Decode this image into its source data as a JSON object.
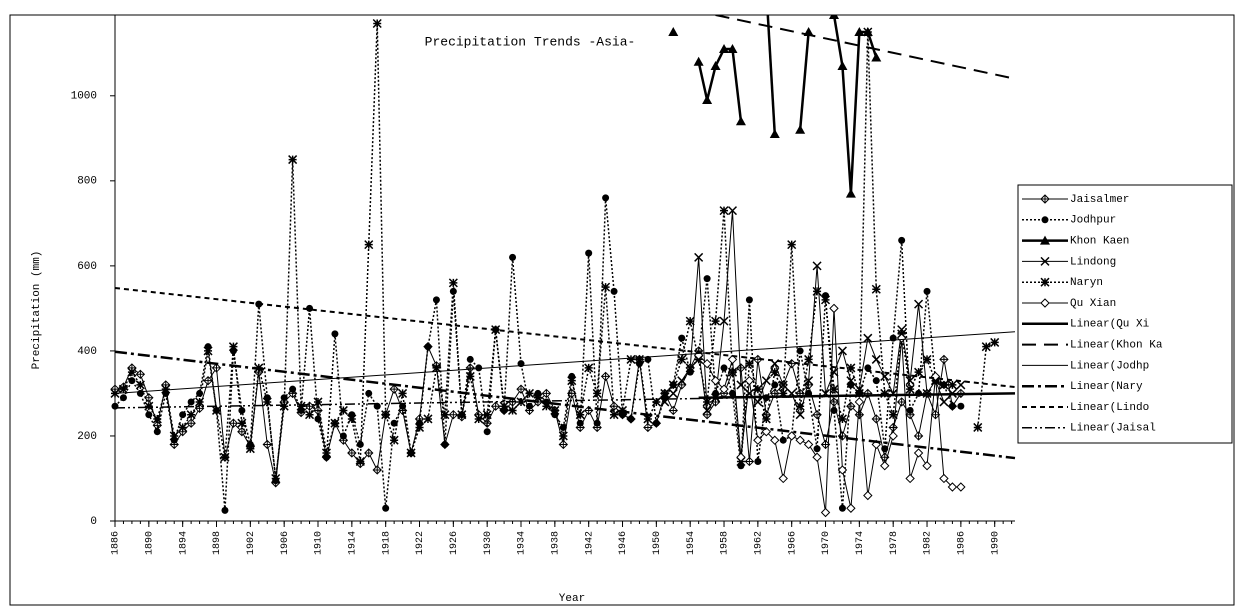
{
  "chart_data": {
    "type": "line",
    "title": "Precipitation Trends -Asia-",
    "x_label": "Year",
    "y_label": "Precipitation (mm)",
    "xlim": [
      1886,
      1992.4
    ],
    "ylim": [
      0,
      1190
    ],
    "xticks": [
      1886,
      1890,
      1894,
      1898,
      1902,
      1906,
      1910,
      1914,
      1918,
      1922,
      1926,
      1930,
      1934,
      1938,
      1942,
      1946,
      1950,
      1954,
      1958,
      1962,
      1966,
      1970,
      1974,
      1978,
      1982,
      1986,
      1990
    ],
    "yticks": [
      0,
      200,
      400,
      600,
      800,
      1000
    ],
    "x": [
      1886,
      1887,
      1888,
      1889,
      1890,
      1891,
      1892,
      1893,
      1894,
      1895,
      1896,
      1897,
      1898,
      1899,
      1900,
      1901,
      1902,
      1903,
      1904,
      1905,
      1906,
      1907,
      1908,
      1909,
      1910,
      1911,
      1912,
      1913,
      1914,
      1915,
      1916,
      1917,
      1918,
      1919,
      1920,
      1921,
      1922,
      1923,
      1924,
      1925,
      1926,
      1927,
      1928,
      1929,
      1930,
      1931,
      1932,
      1933,
      1934,
      1935,
      1936,
      1937,
      1938,
      1939,
      1940,
      1941,
      1942,
      1943,
      1944,
      1945,
      1946,
      1947,
      1948,
      1949,
      1950,
      1951,
      1952,
      1953,
      1954,
      1955,
      1956,
      1957,
      1958,
      1959,
      1960,
      1961,
      1962,
      1963,
      1964,
      1965,
      1966,
      1967,
      1968,
      1969,
      1970,
      1971,
      1972,
      1973,
      1974,
      1975,
      1976,
      1977,
      1978,
      1979,
      1980,
      1981,
      1982,
      1983,
      1984,
      1985,
      1986,
      1987,
      1988,
      1989,
      1990,
      1991,
      1992
    ],
    "legend": "right",
    "series": [
      {
        "name": "Jaisalmer",
        "color": "#000",
        "marker": "diamond-cross",
        "dash": "none",
        "width": 1,
        "values": [
          310,
          315,
          360,
          345,
          290,
          225,
          320,
          180,
          210,
          230,
          265,
          330,
          360,
          150,
          230,
          210,
          175,
          350,
          180,
          90,
          280,
          300,
          255,
          270,
          260,
          150,
          230,
          190,
          160,
          135,
          160,
          120,
          250,
          310,
          260,
          160,
          240,
          410,
          365,
          180,
          250,
          245,
          360,
          250,
          230,
          270,
          260,
          280,
          310,
          260,
          280,
          300,
          260,
          180,
          300,
          220,
          260,
          220,
          340,
          270,
          250,
          240,
          380,
          220,
          230,
          300,
          260,
          320,
          360,
          400,
          250,
          280,
          300,
          350,
          360,
          140,
          380,
          250,
          300,
          320,
          370,
          300,
          320,
          250,
          180,
          280,
          200,
          270,
          250,
          300,
          240,
          150,
          220,
          280,
          250,
          200,
          300,
          250,
          380,
          270,
          300,
          null,
          null,
          null,
          null,
          null,
          null
        ]
      },
      {
        "name": "Jodhpur",
        "color": "#000",
        "marker": "circle",
        "dash": "2,2",
        "width": 1.5,
        "values": [
          270,
          290,
          330,
          300,
          250,
          210,
          300,
          190,
          250,
          280,
          300,
          410,
          260,
          25,
          400,
          260,
          180,
          510,
          290,
          95,
          290,
          310,
          260,
          500,
          240,
          150,
          440,
          200,
          250,
          180,
          300,
          270,
          30,
          230,
          270,
          160,
          230,
          410,
          520,
          180,
          540,
          250,
          380,
          360,
          210,
          450,
          260,
          620,
          370,
          270,
          300,
          280,
          250,
          220,
          340,
          230,
          630,
          230,
          760,
          540,
          250,
          240,
          370,
          380,
          230,
          290,
          320,
          430,
          350,
          390,
          570,
          300,
          360,
          300,
          130,
          520,
          140,
          290,
          320,
          190,
          200,
          400,
          300,
          170,
          530,
          260,
          30,
          320,
          300,
          360,
          330,
          170,
          430,
          660,
          260,
          300,
          540,
          330,
          320,
          270,
          270,
          null,
          null,
          null,
          null,
          null,
          null
        ]
      },
      {
        "name": "Khon Kaen",
        "color": "#000",
        "marker": "triangle",
        "dash": "none",
        "width": 2.5,
        "values": [
          null,
          null,
          null,
          null,
          null,
          null,
          null,
          null,
          null,
          null,
          null,
          null,
          null,
          null,
          null,
          null,
          null,
          null,
          null,
          null,
          null,
          null,
          null,
          null,
          null,
          null,
          null,
          null,
          null,
          null,
          null,
          null,
          null,
          null,
          null,
          null,
          null,
          null,
          null,
          null,
          null,
          null,
          null,
          null,
          null,
          null,
          null,
          null,
          null,
          null,
          null,
          null,
          null,
          null,
          null,
          null,
          null,
          null,
          null,
          null,
          null,
          null,
          null,
          null,
          null,
          null,
          1150,
          null,
          null,
          1080,
          990,
          1070,
          1110,
          1110,
          940,
          null,
          null,
          1250,
          910,
          null,
          null,
          920,
          1150,
          null,
          null,
          1190,
          1070,
          770,
          1150,
          1150,
          1090,
          null,
          null,
          null,
          null,
          null,
          null,
          null,
          null,
          null,
          null,
          null,
          null,
          null,
          null,
          null,
          null
        ]
      },
      {
        "name": "Lindong",
        "color": "#000",
        "marker": "x",
        "dash": "none",
        "width": 1,
        "values": [
          null,
          null,
          null,
          null,
          null,
          null,
          null,
          null,
          null,
          null,
          null,
          null,
          null,
          null,
          null,
          null,
          null,
          null,
          null,
          null,
          null,
          null,
          null,
          null,
          null,
          null,
          null,
          null,
          null,
          null,
          null,
          null,
          null,
          null,
          null,
          null,
          null,
          null,
          null,
          null,
          null,
          null,
          null,
          null,
          null,
          null,
          null,
          null,
          null,
          null,
          null,
          null,
          null,
          null,
          null,
          null,
          null,
          null,
          null,
          null,
          null,
          null,
          null,
          null,
          null,
          280,
          300,
          330,
          360,
          620,
          260,
          290,
          470,
          730,
          320,
          300,
          280,
          330,
          370,
          320,
          300,
          250,
          330,
          600,
          300,
          350,
          400,
          330,
          310,
          430,
          380,
          340,
          300,
          450,
          330,
          510,
          300,
          330,
          280,
          300,
          320,
          null,
          null,
          null,
          null,
          null,
          null
        ]
      },
      {
        "name": "Naryn",
        "color": "#000",
        "marker": "asterisk",
        "dash": "2,2",
        "width": 1.5,
        "values": [
          300,
          310,
          350,
          320,
          270,
          240,
          310,
          200,
          220,
          250,
          280,
          400,
          260,
          150,
          410,
          230,
          170,
          360,
          280,
          100,
          270,
          850,
          270,
          250,
          280,
          160,
          230,
          260,
          240,
          140,
          650,
          1170,
          250,
          190,
          300,
          160,
          220,
          240,
          360,
          250,
          560,
          250,
          340,
          240,
          250,
          450,
          270,
          260,
          280,
          300,
          290,
          270,
          260,
          200,
          330,
          250,
          360,
          300,
          550,
          250,
          260,
          380,
          380,
          240,
          280,
          300,
          320,
          380,
          470,
          380,
          280,
          470,
          730,
          350,
          140,
          370,
          310,
          240,
          350,
          300,
          650,
          270,
          380,
          540,
          520,
          310,
          240,
          360,
          300,
          1150,
          545,
          300,
          250,
          440,
          310,
          350,
          380,
          330,
          320,
          320,
          null,
          null,
          220,
          410,
          420,
          null,
          null
        ]
      },
      {
        "name": "Qu Xian",
        "color": "#000",
        "marker": "diamond",
        "dash": "none",
        "width": 1,
        "values": [
          null,
          null,
          null,
          null,
          null,
          null,
          null,
          null,
          null,
          null,
          null,
          null,
          null,
          null,
          null,
          null,
          null,
          null,
          null,
          null,
          null,
          null,
          null,
          null,
          null,
          null,
          null,
          null,
          null,
          null,
          null,
          null,
          null,
          null,
          null,
          null,
          null,
          null,
          null,
          null,
          null,
          null,
          null,
          null,
          null,
          null,
          null,
          null,
          null,
          null,
          null,
          null,
          null,
          null,
          null,
          null,
          null,
          null,
          null,
          null,
          null,
          null,
          null,
          null,
          null,
          null,
          null,
          null,
          null,
          390,
          370,
          330,
          310,
          380,
          150,
          330,
          190,
          210,
          190,
          100,
          200,
          190,
          180,
          150,
          20,
          500,
          120,
          30,
          280,
          60,
          180,
          130,
          200,
          430,
          100,
          160,
          130,
          340,
          100,
          80,
          80,
          null,
          null,
          null,
          null,
          null,
          null
        ]
      }
    ],
    "trendlines": [
      {
        "name": "Linear(Qu Xi",
        "color": "#000",
        "dash": "none",
        "width": 2.5,
        "x": [
          1955,
          1992.4
        ],
        "values": [
          290,
          300
        ]
      },
      {
        "name": "Linear(Khon Ka",
        "color": "#000",
        "dash": "14,8",
        "width": 2,
        "x": [
          1957,
          1992.4
        ],
        "values": [
          1190,
          1040
        ]
      },
      {
        "name": "Linear(Jodhp",
        "color": "#000",
        "dash": "none",
        "width": 1,
        "x": [
          1886,
          1992.4
        ],
        "values": [
          300,
          445
        ]
      },
      {
        "name": "Linear(Nary",
        "color": "#000",
        "dash": "12,4,3,4",
        "width": 2.5,
        "x": [
          1886,
          1992.4
        ],
        "values": [
          398,
          148
        ]
      },
      {
        "name": "Linear(Lindo",
        "color": "#000",
        "dash": "5,4",
        "width": 2,
        "x": [
          1886,
          1992.4
        ],
        "values": [
          548,
          315
        ]
      },
      {
        "name": "Linear(Jaisal",
        "color": "#000",
        "dash": "10,3,2,3,2,3",
        "width": 1.5,
        "x": [
          1886,
          1992.4
        ],
        "values": [
          266,
          300
        ]
      }
    ]
  }
}
